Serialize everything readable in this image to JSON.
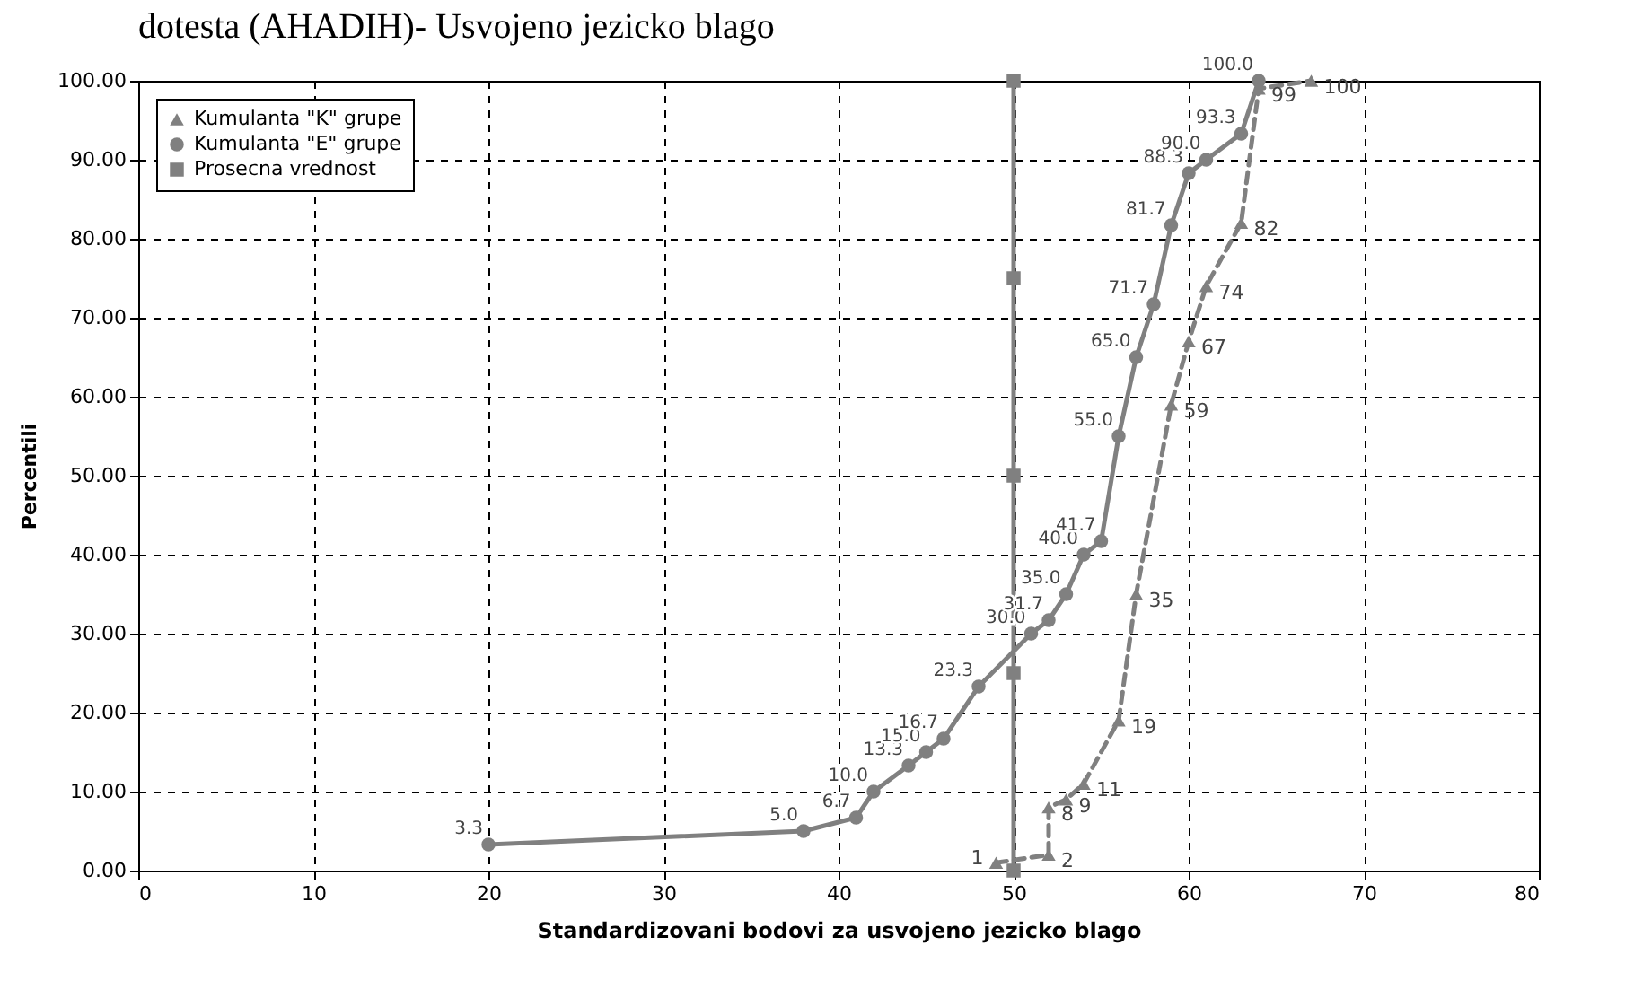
{
  "chart_data": {
    "type": "line",
    "title": "dotesta (AHADIH)- Usvojeno jezicko blago",
    "xlabel": "Standardizovani bodovi za usvojeno jezicko blago",
    "ylabel": "Percentili",
    "xlim": [
      0,
      80
    ],
    "xticks": [
      0,
      10,
      20,
      30,
      40,
      50,
      60,
      70,
      80
    ],
    "ylim": [
      0,
      100
    ],
    "yticks": [
      {
        "value": 0,
        "label": "0.00"
      },
      {
        "value": 10,
        "label": "10.00"
      },
      {
        "value": 20,
        "label": "20.00"
      },
      {
        "value": 30,
        "label": "30.00"
      },
      {
        "value": 40,
        "label": "40.00"
      },
      {
        "value": 50,
        "label": "50.00"
      },
      {
        "value": 60,
        "label": "60.00"
      },
      {
        "value": 70,
        "label": "70.00"
      },
      {
        "value": 80,
        "label": "80.00"
      },
      {
        "value": 90,
        "label": "90.00"
      },
      {
        "value": 100,
        "label": "100.00"
      }
    ],
    "grid": true,
    "legend": "top left",
    "series": [
      {
        "name": "Kumulanta \"K\" grupe",
        "color": "#808080",
        "marker": "triangle",
        "line_style": "dashed",
        "x": [
          49,
          52,
          52,
          53,
          54,
          56,
          57,
          59,
          60,
          61,
          63,
          64,
          67
        ],
        "values": [
          1,
          2,
          8,
          9,
          11,
          19,
          35,
          59,
          67,
          74,
          82,
          99,
          100
        ],
        "value_labels": [
          "1",
          "2",
          "8",
          "9",
          "11",
          "19",
          "35",
          "59",
          "67",
          "74",
          "82",
          "99",
          "100"
        ]
      },
      {
        "name": "Kumulanta \"E\" grupe",
        "color": "#808080",
        "marker": "circle",
        "line_style": "solid",
        "x": [
          20,
          38,
          41,
          42,
          44,
          45,
          46,
          48,
          51,
          52,
          53,
          54,
          55,
          56,
          57,
          58,
          59,
          60,
          61,
          63,
          64
        ],
        "values": [
          3.3,
          5.0,
          6.7,
          10.0,
          13.3,
          15.0,
          16.7,
          23.3,
          30.0,
          31.7,
          35.0,
          40.0,
          41.7,
          55.0,
          65.0,
          71.7,
          81.7,
          88.3,
          90.0,
          93.3,
          100.0
        ],
        "value_labels": [
          "3.3",
          "5.0",
          "6.7",
          "10.0",
          "13.3",
          "15.0",
          "16.7",
          "23.3",
          "30.0",
          "31.7",
          "35.0",
          "40.0",
          "41.7",
          "55.0",
          "65.0",
          "71.7",
          "81.7",
          "88.3",
          "90.0",
          "93.3",
          "100.0"
        ]
      },
      {
        "name": "Prosecna vrednost",
        "color": "#808080",
        "marker": "square",
        "line_style": "solid",
        "x": [
          50,
          50,
          50,
          50,
          50
        ],
        "values": [
          0,
          25,
          50,
          75,
          100
        ]
      }
    ]
  }
}
